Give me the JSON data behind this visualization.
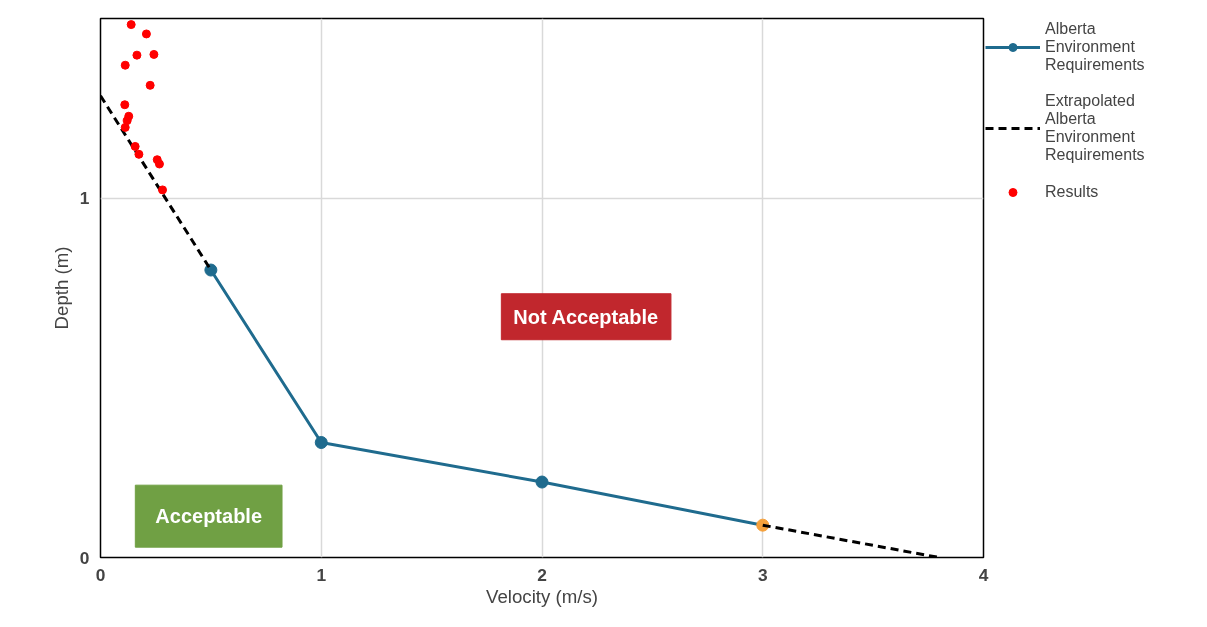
{
  "chart_data": {
    "type": "line",
    "xlabel": "Velocity (m/s)",
    "ylabel": "Depth (m)",
    "xlim": [
      0,
      4
    ],
    "xticks": [
      0,
      1,
      2,
      3,
      4
    ],
    "ylim": [
      0,
      1.5
    ],
    "yticks": [
      0,
      1
    ],
    "grid": true,
    "legend": "top right",
    "annotations": [
      "Not Acceptable",
      "Acceptable"
    ],
    "series": [
      {
        "name": "Alberta Environment Requirements",
        "color": "#1f6b8e",
        "colors": [
          "#1f6b8e",
          "#1f6b8e",
          "#1f6b8e",
          "#f5a13c"
        ],
        "marker": "circle",
        "line_style": "solid",
        "x": [
          0.5,
          1,
          2,
          3
        ],
        "values": [
          0.8,
          0.32,
          0.21,
          0.09
        ]
      },
      {
        "name": "Extrapolated Alberta Environment Requirements",
        "color": "#000000",
        "marker": "none",
        "line_style": "dashed",
        "x": [
          0,
          0.5,
          1,
          3,
          3.8
        ],
        "values": [
          1.285,
          0.8,
          null,
          0.09,
          0
        ]
      },
      {
        "name": "Results",
        "type": "scatter",
        "color": "#ff0000",
        "marker": "circle",
        "x": [
          0.139,
          0.208,
          0.165,
          0.242,
          0.112,
          0.225,
          0.11,
          0.128,
          0.121,
          0.112,
          0.157,
          0.174,
          0.257,
          0.267,
          0.281
        ],
        "values": [
          1.483,
          1.457,
          1.398,
          1.4,
          1.37,
          1.314,
          1.26,
          1.228,
          1.216,
          1.197,
          1.144,
          1.122,
          1.107,
          1.095,
          1.023
        ]
      }
    ]
  }
}
